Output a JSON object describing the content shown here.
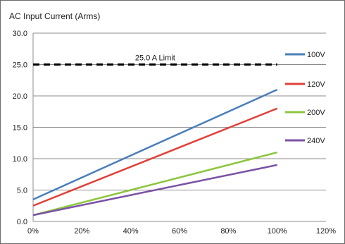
{
  "chart_data": {
    "type": "line",
    "title": "AC Input Current (Arms)",
    "xlabel": "",
    "ylabel": "",
    "x_ticks": [
      "0%",
      "20%",
      "40%",
      "60%",
      "80%",
      "100%",
      "120%"
    ],
    "y_ticks": [
      "0.0",
      "5.0",
      "10.0",
      "15.0",
      "20.0",
      "25.0",
      "30.0"
    ],
    "xlim": [
      0,
      120
    ],
    "ylim": [
      0,
      30
    ],
    "grid": "horizontal",
    "legend_position": "right",
    "x": [
      0,
      100
    ],
    "series": [
      {
        "name": "100V",
        "color": "#4a7ebb",
        "values": [
          3.5,
          21.0
        ]
      },
      {
        "name": "120V",
        "color": "#e0413a",
        "values": [
          2.5,
          18.0
        ]
      },
      {
        "name": "200V",
        "color": "#8cc63e",
        "values": [
          1.0,
          11.0
        ]
      },
      {
        "name": "240V",
        "color": "#7a52a6",
        "values": [
          1.0,
          9.0
        ]
      }
    ],
    "limit_line": {
      "label": "25.0 A Limit",
      "value": 25.0,
      "x_range": [
        0,
        100
      ],
      "color": "#000000",
      "style": "dashed"
    }
  }
}
